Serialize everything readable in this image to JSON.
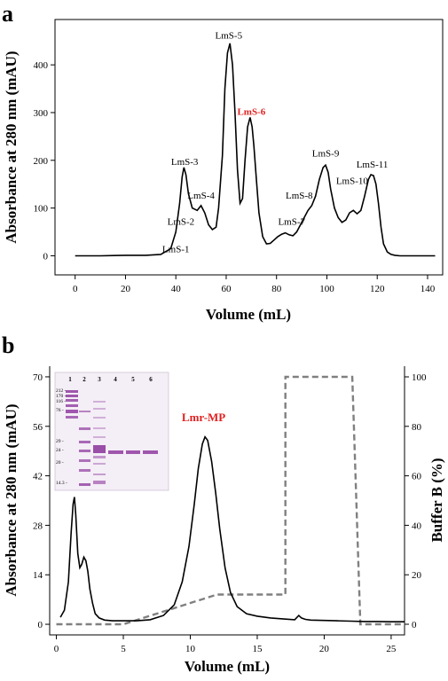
{
  "chart_data": [
    {
      "panel_label": "a",
      "type": "line",
      "xlabel": "Volume (mL)",
      "ylabel": "Absorbance at 280 nm (mAU)",
      "xlim": [
        -8,
        146
      ],
      "ylim": [
        -40,
        495
      ],
      "xticks": [
        0,
        20,
        40,
        60,
        80,
        100,
        120,
        140
      ],
      "yticks": [
        0,
        100,
        200,
        300,
        400
      ],
      "grid": false,
      "series": [
        {
          "color": "#000000",
          "x": [
            0,
            10,
            20,
            28,
            34,
            38,
            40,
            41.5,
            42.5,
            43.2,
            44,
            45,
            46.5,
            48.5,
            50,
            51.5,
            53,
            54.5,
            56,
            57,
            58.5,
            59.5,
            60.5,
            61.5,
            62.5,
            63.5,
            64.5,
            65.5,
            66.5,
            67.5,
            68.5,
            69.5,
            70.3,
            71,
            72,
            73,
            74.5,
            76,
            77.5,
            79,
            80.5,
            82,
            83.5,
            85,
            86.5,
            88,
            89.5,
            91,
            92.5,
            94,
            95.5,
            97,
            98.5,
            99.5,
            100.5,
            101.5,
            103,
            104.5,
            106,
            107.5,
            109,
            110.5,
            112,
            113.5,
            115,
            116.5,
            117.5,
            118.5,
            119.5,
            120.5,
            121.5,
            122.5,
            124,
            125.5,
            127,
            129,
            132,
            136,
            140,
            143
          ],
          "y": [
            0,
            0,
            1,
            1,
            3,
            15,
            50,
            110,
            165,
            185,
            170,
            130,
            100,
            95,
            105,
            90,
            65,
            55,
            60,
            100,
            210,
            350,
            425,
            445,
            400,
            300,
            180,
            110,
            120,
            200,
            270,
            290,
            270,
            230,
            160,
            90,
            40,
            25,
            26,
            33,
            40,
            45,
            48,
            44,
            42,
            50,
            65,
            80,
            95,
            105,
            125,
            160,
            185,
            190,
            175,
            140,
            100,
            80,
            70,
            75,
            90,
            95,
            88,
            95,
            125,
            160,
            170,
            168,
            150,
            110,
            60,
            25,
            8,
            3,
            1,
            0,
            0,
            0,
            0,
            0
          ]
        }
      ],
      "annotations": [
        {
          "text": "LmS-1",
          "x": 40,
          "y": 7,
          "color": "#000000"
        },
        {
          "text": "LmS-2",
          "x": 42,
          "y": 65,
          "color": "#000000"
        },
        {
          "text": "LmS-3",
          "x": 43.5,
          "y": 190,
          "color": "#000000"
        },
        {
          "text": "LmS-4",
          "x": 50,
          "y": 120,
          "color": "#000000"
        },
        {
          "text": "LmS-5",
          "x": 61,
          "y": 455,
          "color": "#000000"
        },
        {
          "text": "LmS-6",
          "x": 70,
          "y": 295,
          "color": "#e02020"
        },
        {
          "text": "LmS-7",
          "x": 86,
          "y": 65,
          "color": "#000000"
        },
        {
          "text": "LmS-8",
          "x": 89,
          "y": 120,
          "color": "#000000"
        },
        {
          "text": "LmS-9",
          "x": 99.5,
          "y": 208,
          "color": "#000000"
        },
        {
          "text": "LmS-10",
          "x": 110,
          "y": 150,
          "color": "#000000"
        },
        {
          "text": "LmS-11",
          "x": 118,
          "y": 185,
          "color": "#000000"
        }
      ]
    },
    {
      "panel_label": "b",
      "type": "line",
      "xlabel": "Volume (mL)",
      "ylabel": "Absorbance at 280 nm (mAU)",
      "y2label": "Buffer B (%)",
      "xlim": [
        -0.5,
        26
      ],
      "ylim": [
        -3,
        73
      ],
      "y2lim": [
        -4.3,
        104.3
      ],
      "xticks": [
        0,
        5,
        10,
        15,
        20,
        25
      ],
      "yticks": [
        0,
        14,
        28,
        42,
        56,
        70
      ],
      "y2ticks": [
        0,
        20,
        40,
        60,
        80,
        100
      ],
      "grid": false,
      "series": [
        {
          "axis": "left",
          "color": "#000000",
          "x": [
            0.3,
            0.6,
            0.9,
            1.1,
            1.25,
            1.35,
            1.45,
            1.6,
            1.75,
            1.9,
            2.05,
            2.2,
            2.35,
            2.5,
            2.7,
            2.9,
            3.2,
            3.6,
            4.2,
            5.0,
            6.0,
            7.0,
            8.0,
            8.8,
            9.4,
            9.9,
            10.3,
            10.6,
            10.9,
            11.1,
            11.3,
            11.6,
            11.9,
            12.2,
            12.6,
            13.0,
            13.5,
            14.2,
            15.0,
            16.0,
            17.0,
            17.8,
            18.1,
            18.3,
            18.6,
            19.0,
            20.0,
            21.0,
            22.0,
            23.0,
            24.0,
            25.0,
            26.0
          ],
          "y": [
            2,
            4,
            12,
            26,
            34,
            36,
            31,
            20,
            16,
            17,
            19,
            18,
            15,
            10,
            6,
            3,
            1.8,
            1.2,
            1.0,
            1.0,
            1.0,
            1.3,
            2.5,
            5.5,
            12,
            22,
            34,
            44,
            51,
            53,
            52,
            46,
            37,
            27,
            16,
            9,
            5,
            3,
            2.3,
            1.8,
            1.5,
            1.3,
            2.5,
            1.8,
            1.4,
            1.2,
            1.1,
            1.0,
            0.9,
            0.8,
            0.8,
            0.7,
            0.7
          ]
        },
        {
          "axis": "right",
          "color": "#808080",
          "dashed": true,
          "x": [
            0,
            5.0,
            12.0,
            17.1,
            17.1,
            22.1,
            22.7,
            26
          ],
          "y": [
            0,
            0,
            12,
            12,
            100,
            100,
            0,
            0
          ]
        }
      ],
      "annotations": [
        {
          "text": "Lmr-MP",
          "x": 11.0,
          "y": 57.5,
          "color": "#e02020"
        }
      ],
      "inset": {
        "type": "gel",
        "lanes": [
          "1",
          "2",
          "3",
          "4",
          "5",
          "6"
        ],
        "markers": [
          "212 -",
          "170 -",
          "116 -",
          "76 -",
          "29 -",
          "24 -",
          "20 -",
          "14.3 -"
        ]
      }
    }
  ]
}
